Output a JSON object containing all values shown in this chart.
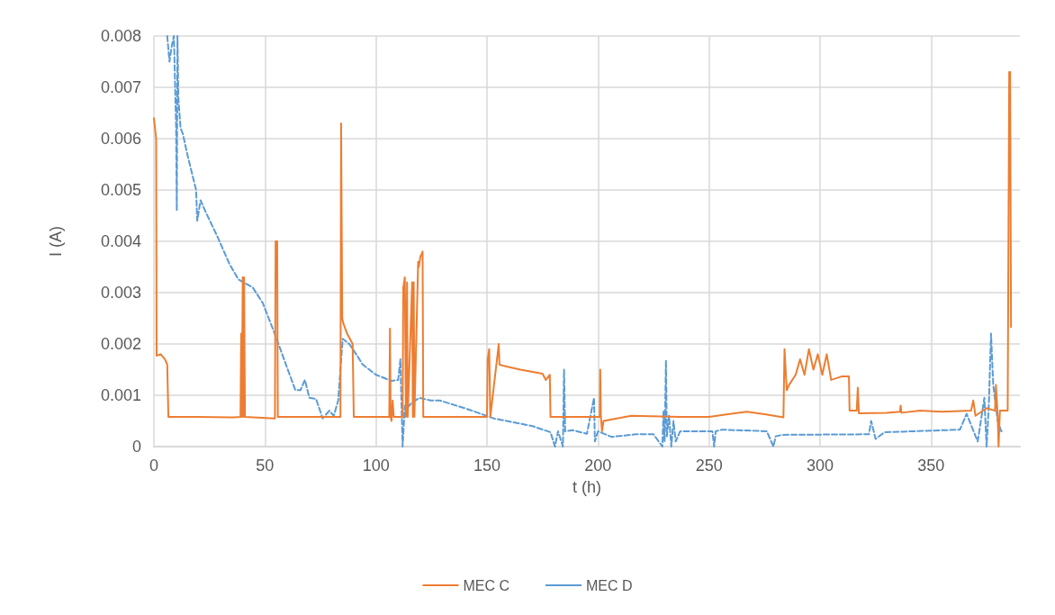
{
  "chart_data": {
    "type": "line",
    "xlabel": "t (h)",
    "ylabel": "I (A)",
    "xlim": [
      0,
      390
    ],
    "xticks": [
      0,
      50,
      100,
      150,
      200,
      250,
      300,
      350
    ],
    "ylim": [
      0,
      0.008
    ],
    "yticks": [
      0,
      0.001,
      0.002,
      0.003,
      0.004,
      0.005,
      0.006,
      0.007,
      0.008
    ],
    "grid": true,
    "legend": "bottom",
    "marker": "none",
    "series": [
      {
        "name": "MEC C",
        "color": "#ed7d31",
        "line_style": "solid",
        "x": [
          0,
          1,
          1.2,
          3,
          5,
          6,
          6.5,
          20,
          36,
          39,
          39.3,
          39.6,
          40,
          40.3,
          40.6,
          41,
          54.5,
          54.8,
          55.5,
          55.8,
          70,
          84,
          84.3,
          84.8,
          85.3,
          87,
          89.5,
          90,
          100,
          106,
          106.3,
          106.6,
          107,
          107.5,
          108,
          112,
          112.3,
          113,
          113.5,
          114,
          114.3,
          116.3,
          116.6,
          117,
          117.3,
          119,
          119.3,
          120,
          121,
          121.3,
          135,
          150,
          150.3,
          151,
          151.5,
          155.3,
          155.6,
          157,
          165,
          175,
          176.5,
          178.3,
          178.6,
          190,
          200.8,
          201,
          201.3,
          201.8,
          202.5,
          215,
          237,
          250,
          260,
          267,
          275,
          283.5,
          284,
          285,
          286,
          289,
          291,
          293,
          295,
          297,
          299,
          301,
          303,
          305,
          310,
          313,
          313.3,
          316.5,
          317,
          317.5,
          330,
          336,
          336.3,
          336.6,
          345,
          355,
          368,
          369,
          370,
          375,
          378.8,
          379.2,
          380,
          380.4,
          381,
          384.5,
          385.2,
          385.6,
          386
        ],
        "values": [
          0.0064,
          0.006,
          0.00177,
          0.0018,
          0.0017,
          0.0016,
          0.00058,
          0.00058,
          0.00057,
          0.00058,
          0.0022,
          0.00058,
          0.0033,
          0.00058,
          0.0033,
          0.00058,
          0.00055,
          0.004,
          0.004,
          0.00058,
          0.00058,
          0.00058,
          0.0063,
          0.0025,
          0.0024,
          0.0022,
          0.002,
          0.00058,
          0.00058,
          0.00058,
          0.0023,
          0.00058,
          0.0005,
          0.0009,
          0.00058,
          0.00058,
          0.0031,
          0.0033,
          0.00058,
          0.0032,
          0.00058,
          0.0032,
          0.00058,
          0.0032,
          0.00058,
          0.0036,
          0.0035,
          0.0037,
          0.0038,
          0.00058,
          0.00058,
          0.00058,
          0.0017,
          0.0019,
          0.00058,
          0.002,
          0.0016,
          0.00158,
          0.0015,
          0.00142,
          0.0013,
          0.0014,
          0.00058,
          0.00058,
          0.00058,
          0.0015,
          0.00058,
          0.0003,
          0.0005,
          0.0006,
          0.00058,
          0.00058,
          0.00064,
          0.00068,
          0.00063,
          0.00057,
          0.0019,
          0.0011,
          0.0012,
          0.0014,
          0.0017,
          0.0014,
          0.0019,
          0.0015,
          0.0018,
          0.0014,
          0.0018,
          0.0013,
          0.00137,
          0.00137,
          0.0007,
          0.0007,
          0.00115,
          0.00065,
          0.00066,
          0.00068,
          0.0008,
          0.00066,
          0.0007,
          0.00068,
          0.0007,
          0.0009,
          0.0006,
          0.00075,
          0.0007,
          0.0012,
          0.0006,
          0,
          0.0007,
          0.0007,
          0.0073,
          0.0073,
          0.00233
        ]
      },
      {
        "name": "MEC D",
        "color": "#5b9bd5",
        "line_style": "dashed",
        "x": [
          6,
          7,
          8,
          9,
          10,
          10.3,
          10.6,
          11,
          12,
          13,
          15,
          19,
          19.5,
          21,
          23,
          28.5,
          34,
          38,
          44.5,
          49,
          54.4,
          59.7,
          63.7,
          66,
          68,
          70,
          73,
          76,
          79,
          81,
          83,
          85,
          88,
          92,
          94,
          100,
          107,
          110,
          111,
          112,
          113,
          114,
          116,
          119.5,
          124.6,
          128.7,
          142,
          153,
          170.5,
          178.6,
          180.6,
          182,
          184.2,
          184.7,
          185.2,
          188.6,
          195,
          198.2,
          198.6,
          200,
          206,
          217,
          225,
          229,
          229.5,
          230,
          230.6,
          231,
          232,
          233,
          234,
          235,
          237,
          246.5,
          251.5,
          252.3,
          253,
          256,
          276,
          279,
          280,
          283,
          322,
          323,
          325,
          329,
          363,
          366,
          371,
          374,
          375,
          376,
          377,
          378,
          380,
          381.6,
          382.5
        ],
        "values": [
          0.008,
          0.0075,
          0.0078,
          0.008,
          0.0062,
          0.0046,
          0.008,
          0.0068,
          0.0062,
          0.0061,
          0.0057,
          0.005,
          0.0044,
          0.0048,
          0.0046,
          0.0041,
          0.00356,
          0.00326,
          0.0031,
          0.0028,
          0.0022,
          0.00157,
          0.0011,
          0.0011,
          0.0013,
          0.00095,
          0.00093,
          0.00055,
          0.0007,
          0.0006,
          0.0009,
          0.0021,
          0.002,
          0.00174,
          0.0016,
          0.0014,
          0.00128,
          0.0013,
          0.0017,
          0,
          0.0008,
          0.00075,
          0.00085,
          0.00095,
          0.0009,
          0.0009,
          0.00072,
          0.00055,
          0.0004,
          0.00028,
          0,
          0.0003,
          0,
          0.0015,
          0.0003,
          0.00032,
          0.00025,
          0.00095,
          0.0001,
          0.0003,
          0.00019,
          0.00024,
          0.00024,
          0,
          0.0007,
          0.0001,
          0.00168,
          0.0002,
          0.0006,
          0,
          0.0005,
          0.0001,
          0.0003,
          0.0003,
          0.0003,
          0,
          0.0003,
          0.00033,
          0.0003,
          0,
          0.0002,
          0.00023,
          0.00024,
          0.0005,
          0.00015,
          0.00028,
          0.00033,
          0.00064,
          0.0001,
          0.00095,
          0,
          0.0008,
          0.0022,
          0.0012,
          0.0005,
          0.0003,
          0.0003
        ]
      }
    ]
  }
}
